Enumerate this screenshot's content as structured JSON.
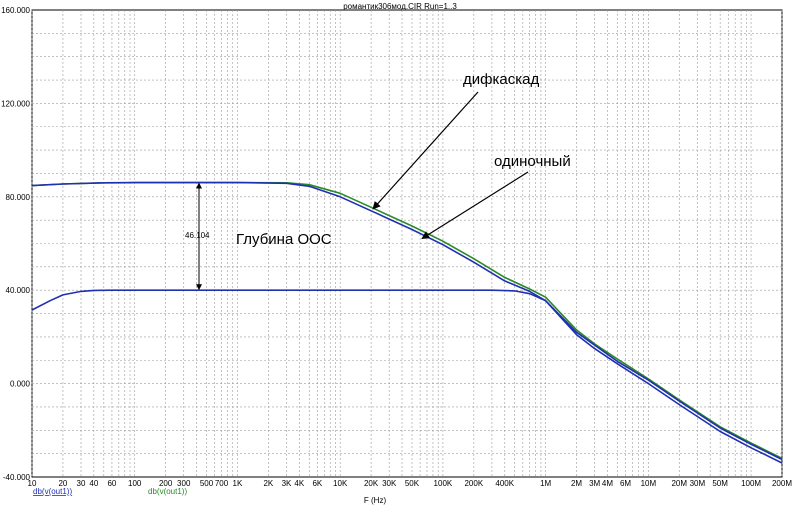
{
  "chart_data": {
    "type": "line",
    "title": "романтик306мод.CIR Run=1..3",
    "xlabel": "F (Hz)",
    "ylabel": "",
    "x_scale": "log",
    "xlim": [
      10,
      200000000
    ],
    "ylim": [
      -40,
      160
    ],
    "grid": true,
    "y_ticks": [
      "-40.000",
      "0.000",
      "40.000",
      "80.000",
      "120.000",
      "160.000"
    ],
    "x_ticks": [
      {
        "v": 10,
        "label": "10"
      },
      {
        "v": 20,
        "label": "20"
      },
      {
        "v": 30,
        "label": "30"
      },
      {
        "v": 40,
        "label": "40"
      },
      {
        "v": 60,
        "label": "60"
      },
      {
        "v": 100,
        "label": "100"
      },
      {
        "v": 200,
        "label": "200"
      },
      {
        "v": 300,
        "label": "300"
      },
      {
        "v": 500,
        "label": "500"
      },
      {
        "v": 700,
        "label": "700"
      },
      {
        "v": 1000,
        "label": "1K"
      },
      {
        "v": 2000,
        "label": "2K"
      },
      {
        "v": 3000,
        "label": "3K"
      },
      {
        "v": 4000,
        "label": "4K"
      },
      {
        "v": 6000,
        "label": "6K"
      },
      {
        "v": 10000,
        "label": "10K"
      },
      {
        "v": 20000,
        "label": "20K"
      },
      {
        "v": 30000,
        "label": "30K"
      },
      {
        "v": 50000,
        "label": "50K"
      },
      {
        "v": 100000,
        "label": "100K"
      },
      {
        "v": 200000,
        "label": "200K"
      },
      {
        "v": 400000,
        "label": "400K"
      },
      {
        "v": 1000000,
        "label": "1M"
      },
      {
        "v": 2000000,
        "label": "2M"
      },
      {
        "v": 3000000,
        "label": "3M"
      },
      {
        "v": 4000000,
        "label": "4M"
      },
      {
        "v": 6000000,
        "label": "6M"
      },
      {
        "v": 10000000,
        "label": "10M"
      },
      {
        "v": 20000000,
        "label": "20M"
      },
      {
        "v": 30000000,
        "label": "30M"
      },
      {
        "v": 50000000,
        "label": "50M"
      },
      {
        "v": 100000000,
        "label": "100M"
      },
      {
        "v": 200000000,
        "label": "200M"
      }
    ],
    "series": [
      {
        "name": "db(v(out1))",
        "color": "#2a8a2a",
        "x": [
          10,
          20,
          50,
          100,
          1000,
          3000,
          5000,
          10000,
          20000,
          50000,
          100000,
          200000,
          400000,
          700000,
          1000000,
          2000000,
          3000000,
          5000000,
          10000000,
          20000000,
          50000000,
          100000000,
          200000000
        ],
        "y": [
          84.8,
          85.5,
          86.0,
          86.1,
          86.1,
          86.0,
          85.2,
          81.5,
          75.5,
          67.5,
          61.0,
          53.5,
          45.5,
          40.5,
          37.0,
          23.0,
          17.0,
          10.5,
          2.0,
          -7.0,
          -18.5,
          -25.5,
          -32.0
        ]
      },
      {
        "name": "db(v(out1))",
        "color": "#2030b0",
        "x": [
          10,
          20,
          50,
          100,
          1000,
          3000,
          5000,
          10000,
          20000,
          50000,
          100000,
          200000,
          400000,
          700000,
          1000000,
          2000000,
          3000000,
          5000000,
          10000000,
          20000000,
          50000000,
          100000000,
          200000000
        ],
        "y": [
          84.8,
          85.5,
          86.0,
          86.1,
          86.1,
          85.8,
          84.5,
          80.0,
          74.0,
          66.0,
          59.5,
          52.0,
          44.0,
          39.5,
          35.5,
          21.0,
          15.0,
          8.5,
          0.0,
          -9.0,
          -20.5,
          -27.5,
          -34.0
        ]
      },
      {
        "name": "db(v(out1))",
        "color": "#2030b0",
        "x": [
          10,
          15,
          20,
          30,
          40,
          60,
          100,
          1000,
          10000,
          100000,
          300000,
          500000,
          700000,
          1000000,
          2000000,
          3000000,
          5000000,
          10000000,
          20000000,
          50000000,
          100000000,
          200000000
        ],
        "y": [
          31.5,
          35.5,
          38.0,
          39.5,
          39.9,
          40.0,
          40.0,
          40.0,
          40.0,
          40.0,
          40.0,
          39.7,
          38.5,
          35.5,
          22.0,
          16.5,
          9.5,
          1.5,
          -7.5,
          -19.0,
          -26.0,
          -32.5
        ]
      }
    ],
    "trace_labels": [
      "db(v(out1))",
      "db(v(out1))"
    ],
    "annotations": {
      "dif": "дифкаскад",
      "single": "одиночный",
      "depth": "Глубина ООС",
      "measure": "46.104"
    }
  }
}
